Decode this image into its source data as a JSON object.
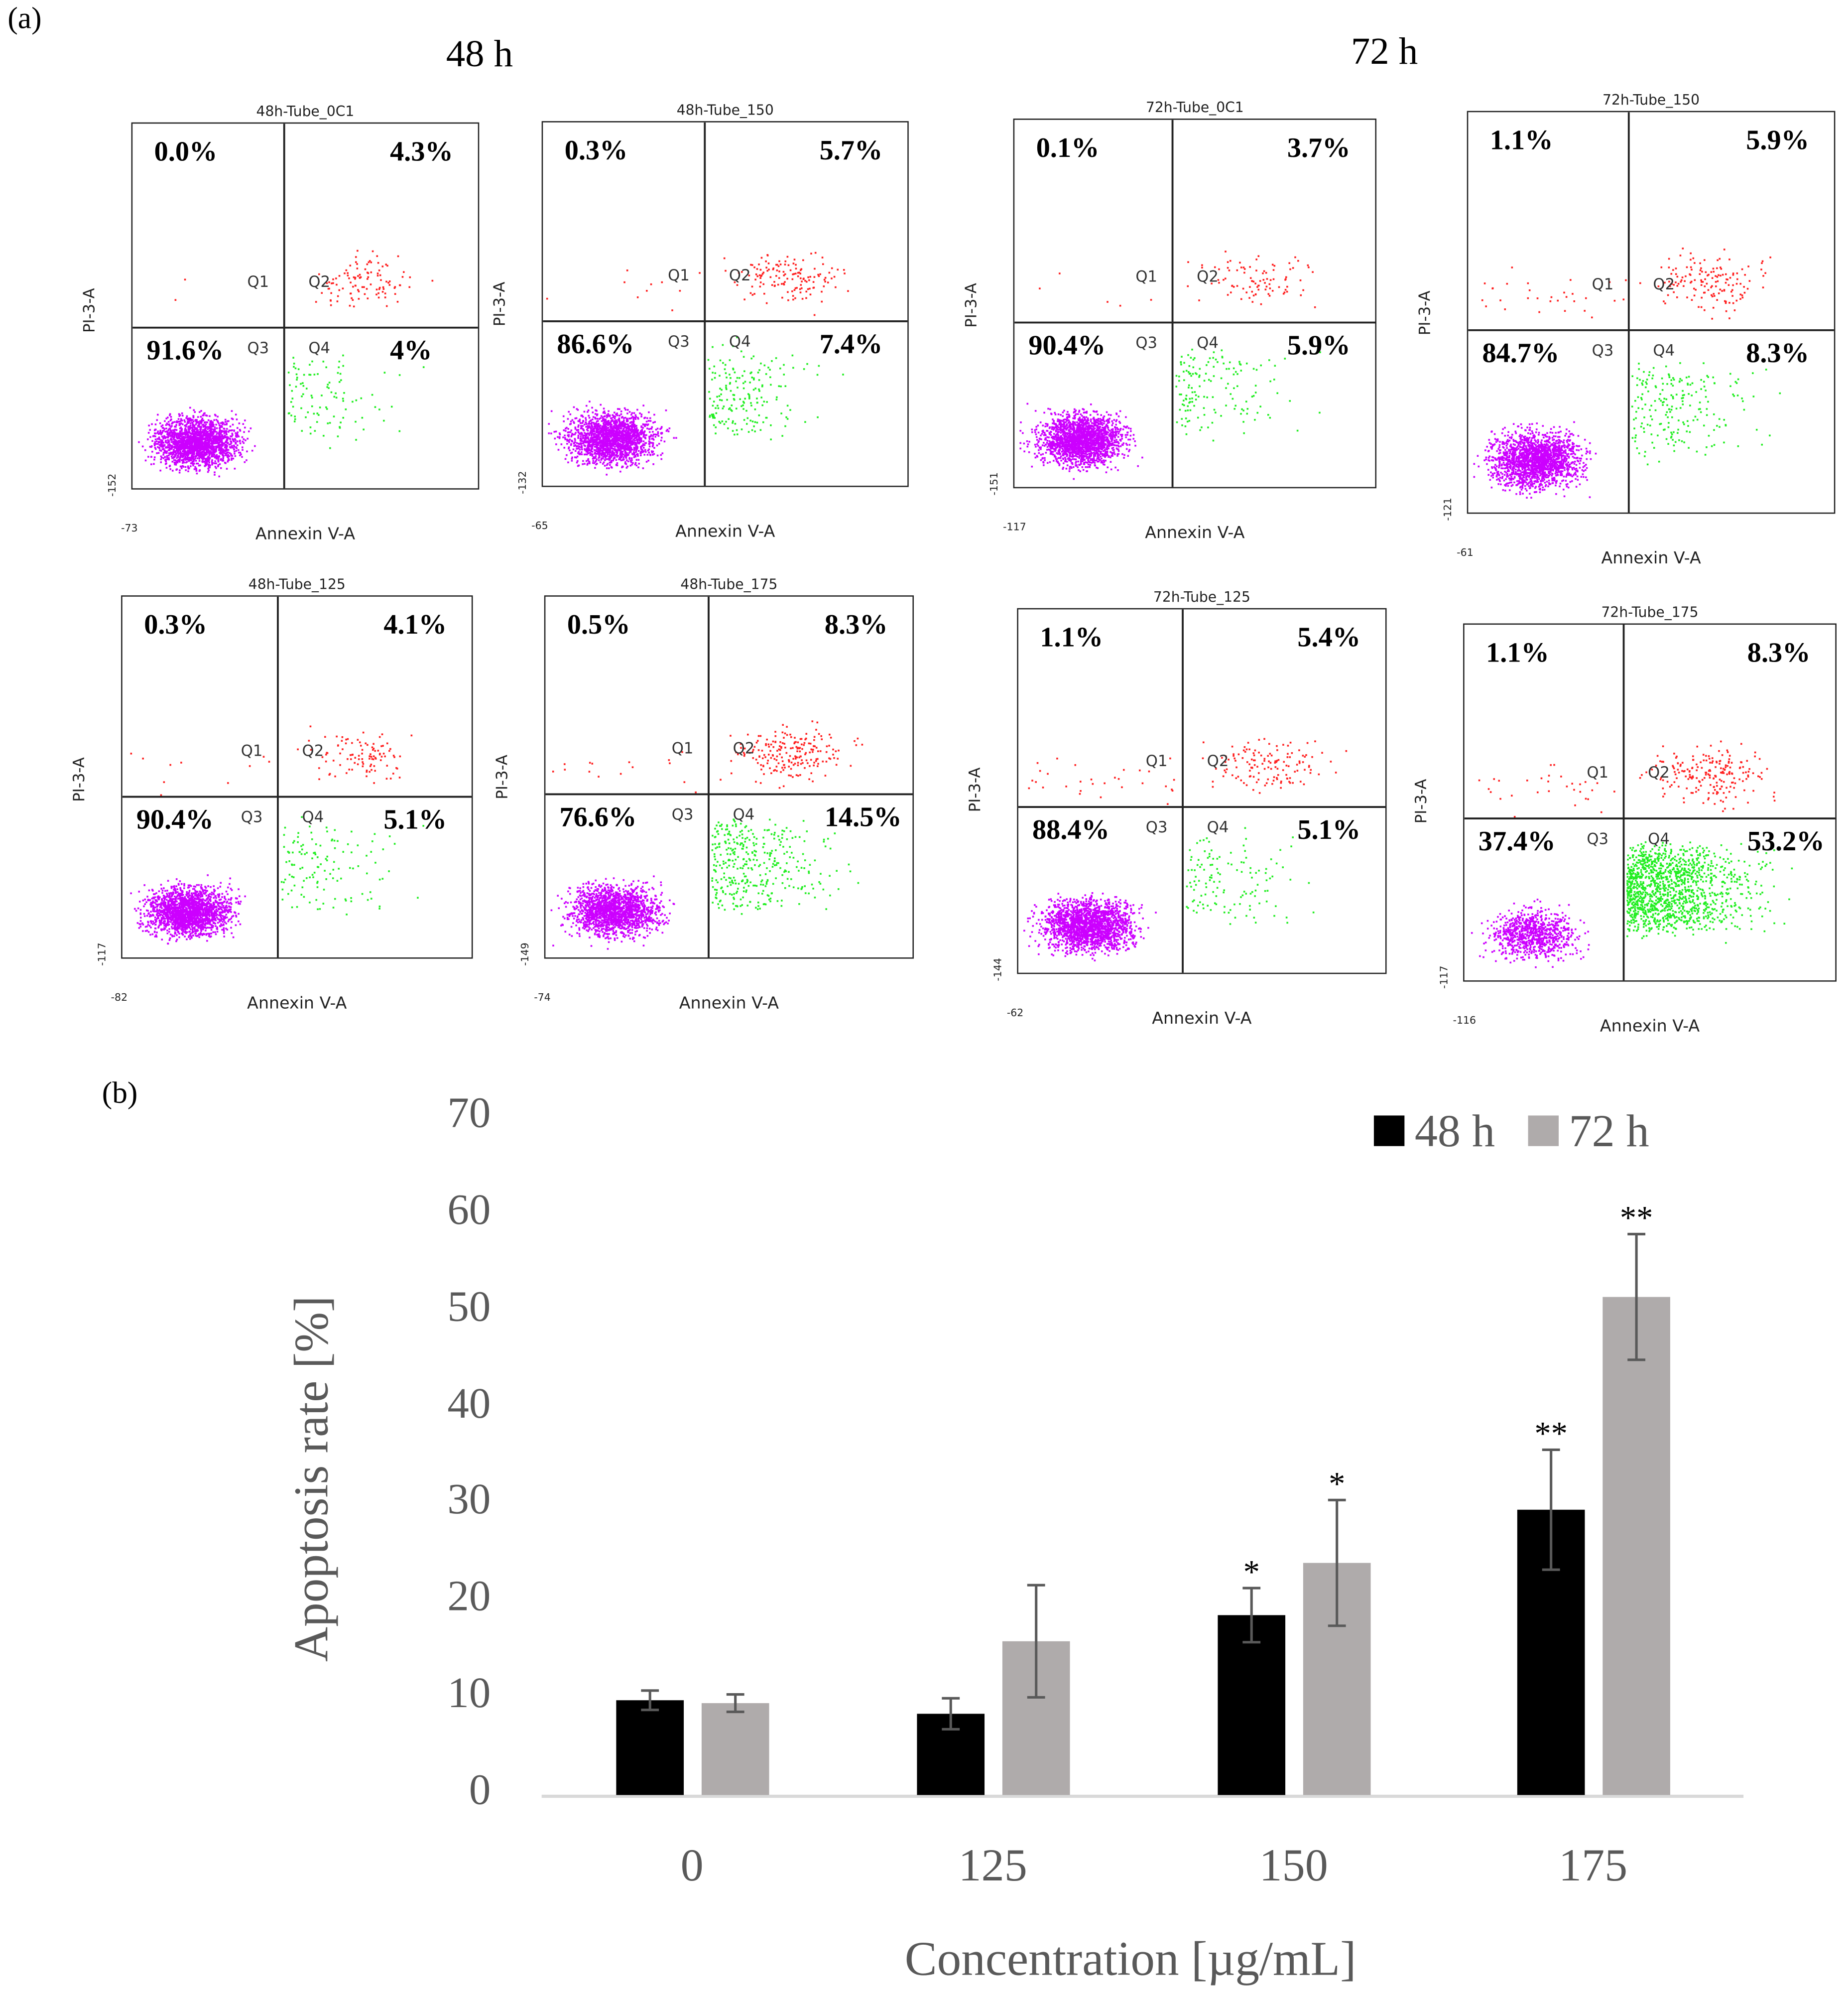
{
  "panel_a": {
    "label": "(a)",
    "col_headers": [
      "48 h",
      "72 h"
    ],
    "x_axis_label": "Annexin V-A",
    "y_axis_label": "PI-3-A",
    "quadrant_names": [
      "Q1",
      "Q2",
      "Q3",
      "Q4"
    ],
    "plots": [
      {
        "title": "48h-Tube_0C1",
        "q1": "0.0%",
        "q2": "4.3%",
        "q3": "91.6%",
        "q4": "4%",
        "x_min": "-73",
        "y_min": "-152"
      },
      {
        "title": "48h-Tube_150",
        "q1": "0.3%",
        "q2": "5.7%",
        "q3": "86.6%",
        "q4": "7.4%",
        "x_min": "-65",
        "y_min": "-132"
      },
      {
        "title": "72h-Tube_0C1",
        "q1": "0.1%",
        "q2": "3.7%",
        "q3": "90.4%",
        "q4": "5.9%",
        "x_min": "-117",
        "y_min": "-151"
      },
      {
        "title": "72h-Tube_150",
        "q1": "1.1%",
        "q2": "5.9%",
        "q3": "84.7%",
        "q4": "8.3%",
        "x_min": "-61",
        "y_min": "-121"
      },
      {
        "title": "48h-Tube_125",
        "q1": "0.3%",
        "q2": "4.1%",
        "q3": "90.4%",
        "q4": "5.1%",
        "x_min": "-82",
        "y_min": "-117"
      },
      {
        "title": "48h-Tube_175",
        "q1": "0.5%",
        "q2": "8.3%",
        "q3": "76.6%",
        "q4": "14.5%",
        "x_min": "-74",
        "y_min": "-149"
      },
      {
        "title": "72h-Tube_125",
        "q1": "1.1%",
        "q2": "5.4%",
        "q3": "88.4%",
        "q4": "5.1%",
        "x_min": "-62",
        "y_min": "-144"
      },
      {
        "title": "72h-Tube_175",
        "q1": "1.1%",
        "q2": "8.3%",
        "q3": "37.4%",
        "q4": "53.2%",
        "x_min": "-116",
        "y_min": "-117"
      }
    ],
    "colors": {
      "q1q2": "#ff2020",
      "q3": "#cc00ff",
      "q4": "#22ee22"
    }
  },
  "panel_b": {
    "label": "(b)"
  },
  "chart_data": {
    "type": "bar",
    "title": "",
    "xlabel": "Concentration [µg/mL]",
    "ylabel": "Apoptosis rate [%]",
    "categories": [
      "0",
      "125",
      "150",
      "175"
    ],
    "ylim": [
      0,
      70
    ],
    "yticks": [
      "0",
      "10",
      "20",
      "30",
      "40",
      "50",
      "60",
      "70"
    ],
    "legend_position": "top-right",
    "series": [
      {
        "name": "48 h",
        "color": "#000000",
        "values": [
          9.8,
          8.4,
          18.6,
          29.5
        ],
        "errors": [
          1.0,
          1.6,
          2.8,
          6.2
        ],
        "significance": [
          "",
          "",
          "*",
          "**"
        ]
      },
      {
        "name": "72 h",
        "color": "#afabab",
        "values": [
          9.5,
          15.9,
          24.0,
          51.5
        ],
        "errors": [
          0.9,
          5.8,
          6.5,
          6.5
        ],
        "significance": [
          "",
          "",
          "*",
          "**"
        ]
      }
    ]
  }
}
